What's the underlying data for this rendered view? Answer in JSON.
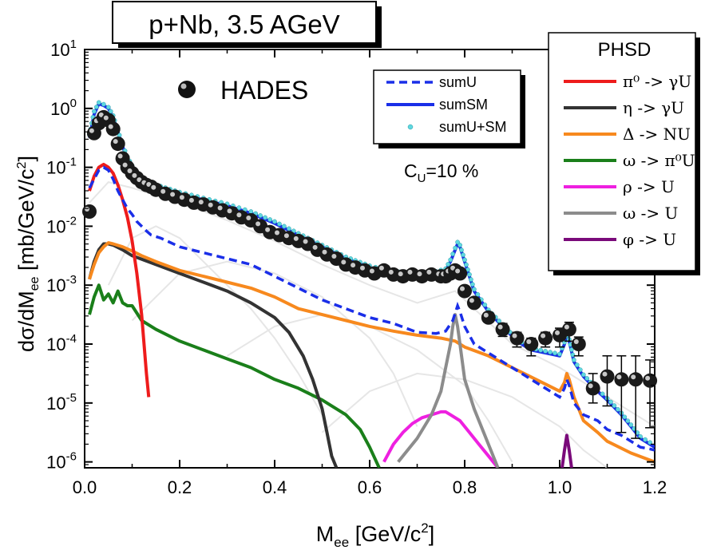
{
  "title": "p+Nb, 3.5 AGeV",
  "experiment_label": "HADES",
  "coupling_label": "C",
  "coupling_sub": "U",
  "coupling_value": "=10 %",
  "phsd_header": "PHSD",
  "chart_data": {
    "type": "line",
    "xlabel": "M",
    "xlabel_sub": "ee",
    "xlabel_unit": " [GeV/c",
    "xlabel_sup": "2",
    "xlabel_end": "]",
    "ylabel": "dσ/dM",
    "ylabel_sub": "ee",
    "ylabel_unit": " [mb/GeV/c",
    "ylabel_sup": "2",
    "ylabel_end": "]",
    "xlim": [
      0.0,
      1.2
    ],
    "ylim_log10": [
      -6.1,
      1
    ],
    "yscale": "log",
    "xticks": [
      "0.0",
      "0.2",
      "0.4",
      "0.6",
      "0.8",
      "1.0",
      "1.2"
    ],
    "yticks": [
      {
        "base": "10",
        "exp": "1",
        "value": 1
      },
      {
        "base": "10",
        "exp": "0",
        "value": 0
      },
      {
        "base": "10",
        "exp": "-1",
        "value": -1
      },
      {
        "base": "10",
        "exp": "-2",
        "value": -2
      },
      {
        "base": "10",
        "exp": "-3",
        "value": -3
      },
      {
        "base": "10",
        "exp": "-4",
        "value": -4
      },
      {
        "base": "10",
        "exp": "-5",
        "value": -5
      },
      {
        "base": "10",
        "exp": "-6",
        "value": -6
      }
    ],
    "legend_left": [
      {
        "label": "sumU",
        "color": "#1a2ee8",
        "style": "dashed"
      },
      {
        "label": "sumSM",
        "color": "#1a2ee8",
        "style": "solid"
      },
      {
        "label": "sumU+SM",
        "color": "#5fd8e0",
        "style": "dots"
      }
    ],
    "legend_right": [
      {
        "label": "π⁰ -> γU",
        "color": "#ee1c1c"
      },
      {
        "label": "η -> γU",
        "color": "#333333"
      },
      {
        "label": "Δ -> NU",
        "color": "#f7891e"
      },
      {
        "label": "ω -> π⁰U",
        "color": "#1a7f1a"
      },
      {
        "label": "ρ -> U",
        "color": "#ee20e0"
      },
      {
        "label": "ω -> U",
        "color": "#8c8c8c"
      },
      {
        "label": "φ -> U",
        "color": "#7a0a7a"
      }
    ],
    "series": [
      {
        "name": "HADES",
        "type": "points",
        "color": "#000000",
        "x": [
          0.01,
          0.02,
          0.03,
          0.04,
          0.05,
          0.06,
          0.07,
          0.08,
          0.09,
          0.1,
          0.11,
          0.12,
          0.13,
          0.14,
          0.15,
          0.17,
          0.19,
          0.21,
          0.23,
          0.25,
          0.27,
          0.29,
          0.31,
          0.33,
          0.35,
          0.37,
          0.39,
          0.41,
          0.43,
          0.45,
          0.47,
          0.49,
          0.51,
          0.53,
          0.55,
          0.57,
          0.59,
          0.61,
          0.63,
          0.65,
          0.67,
          0.69,
          0.71,
          0.73,
          0.75,
          0.76,
          0.77,
          0.78,
          0.79,
          0.8,
          0.82,
          0.85,
          0.88,
          0.91,
          0.94,
          0.97,
          1.0,
          1.02,
          1.04,
          1.07,
          1.1,
          1.13,
          1.16,
          1.19
        ],
        "logy": [
          -1.75,
          -0.42,
          -0.25,
          -0.15,
          -0.2,
          -0.35,
          -0.6,
          -0.85,
          -1.0,
          -1.1,
          -1.18,
          -1.25,
          -1.3,
          -1.33,
          -1.38,
          -1.45,
          -1.5,
          -1.55,
          -1.6,
          -1.63,
          -1.68,
          -1.73,
          -1.78,
          -1.85,
          -1.9,
          -2.0,
          -2.1,
          -2.15,
          -2.2,
          -2.25,
          -2.3,
          -2.4,
          -2.48,
          -2.55,
          -2.65,
          -2.7,
          -2.75,
          -2.8,
          -2.75,
          -2.82,
          -2.85,
          -2.82,
          -2.85,
          -2.82,
          -2.85,
          -2.85,
          -2.8,
          -2.75,
          -2.8,
          -3.1,
          -3.3,
          -3.55,
          -3.75,
          -3.9,
          -4.0,
          -3.9,
          -3.85,
          -3.75,
          -4.0,
          -4.75,
          -4.55,
          -4.6,
          -4.6,
          -4.62
        ],
        "err_up": [
          0,
          0,
          0,
          0,
          0,
          0,
          0,
          0,
          0,
          0,
          0,
          0,
          0,
          0,
          0,
          0,
          0,
          0,
          0,
          0,
          0,
          0,
          0,
          0,
          0,
          0,
          0,
          0,
          0,
          0,
          0,
          0,
          0,
          0,
          0,
          0,
          0,
          0,
          0,
          0,
          0,
          0,
          0,
          0,
          0,
          0,
          0,
          0,
          0,
          0,
          0,
          0.08,
          0.1,
          0.1,
          0.1,
          0.1,
          0.12,
          0.12,
          0.12,
          0.25,
          0.35,
          0.4,
          0.4,
          0.35
        ],
        "err_dn": [
          0,
          0,
          0,
          0,
          0,
          0,
          0,
          0,
          0,
          0,
          0,
          0,
          0,
          0,
          0,
          0,
          0,
          0,
          0,
          0,
          0,
          0,
          0,
          0,
          0,
          0,
          0,
          0,
          0,
          0,
          0,
          0,
          0,
          0,
          0,
          0,
          0,
          0,
          0,
          0,
          0,
          0,
          0,
          0,
          0,
          0,
          0,
          0,
          0,
          0,
          0,
          0.08,
          0.12,
          0.15,
          0.2,
          0.15,
          0.2,
          0.2,
          0.2,
          0.25,
          0.5,
          0.9,
          1.0,
          0.8
        ]
      },
      {
        "name": "sumSM",
        "type": "solid",
        "color": "#1a2ee8",
        "x": [
          0.01,
          0.02,
          0.03,
          0.04,
          0.05,
          0.06,
          0.07,
          0.08,
          0.09,
          0.1,
          0.12,
          0.14,
          0.16,
          0.2,
          0.25,
          0.3,
          0.35,
          0.4,
          0.45,
          0.5,
          0.55,
          0.6,
          0.65,
          0.7,
          0.73,
          0.76,
          0.77,
          0.78,
          0.785,
          0.79,
          0.8,
          0.82,
          0.85,
          0.88,
          0.91,
          0.94,
          0.97,
          1.0,
          1.01,
          1.015,
          1.02,
          1.03,
          1.05,
          1.08,
          1.1,
          1.13,
          1.15,
          1.17,
          1.19,
          1.2
        ],
        "logy": [
          -0.5,
          -0.1,
          0.08,
          0.05,
          0.0,
          -0.15,
          -0.4,
          -0.65,
          -0.85,
          -1.0,
          -1.2,
          -1.3,
          -1.35,
          -1.45,
          -1.55,
          -1.65,
          -1.78,
          -1.95,
          -2.15,
          -2.35,
          -2.55,
          -2.7,
          -2.8,
          -2.82,
          -2.82,
          -2.75,
          -2.6,
          -2.4,
          -2.3,
          -2.35,
          -2.6,
          -3.1,
          -3.45,
          -3.7,
          -3.95,
          -4.1,
          -4.15,
          -4.2,
          -4.0,
          -3.8,
          -3.95,
          -4.3,
          -4.55,
          -4.8,
          -4.95,
          -5.2,
          -5.4,
          -5.6,
          -5.7,
          -5.75
        ]
      },
      {
        "name": "sumU+SM",
        "type": "dots",
        "color": "#5fd8e0",
        "x": [
          0.01,
          0.02,
          0.03,
          0.04,
          0.05,
          0.06,
          0.07,
          0.08,
          0.09,
          0.1,
          0.12,
          0.14,
          0.16,
          0.2,
          0.25,
          0.3,
          0.35,
          0.4,
          0.45,
          0.5,
          0.55,
          0.6,
          0.65,
          0.7,
          0.73,
          0.76,
          0.77,
          0.78,
          0.785,
          0.79,
          0.8,
          0.82,
          0.85,
          0.88,
          0.91,
          0.94,
          0.97,
          1.0,
          1.01,
          1.015,
          1.02,
          1.03,
          1.05,
          1.08,
          1.1,
          1.13,
          1.15,
          1.17,
          1.19,
          1.2
        ],
        "logy": [
          -0.45,
          -0.05,
          0.1,
          0.07,
          0.02,
          -0.12,
          -0.37,
          -0.62,
          -0.82,
          -0.97,
          -1.17,
          -1.27,
          -1.32,
          -1.42,
          -1.52,
          -1.62,
          -1.75,
          -1.92,
          -2.12,
          -2.32,
          -2.52,
          -2.67,
          -2.77,
          -2.79,
          -2.79,
          -2.72,
          -2.57,
          -2.37,
          -2.27,
          -2.32,
          -2.57,
          -3.07,
          -3.42,
          -3.67,
          -3.92,
          -4.07,
          -4.12,
          -4.17,
          -3.97,
          -3.77,
          -3.92,
          -4.27,
          -4.52,
          -4.77,
          -4.92,
          -5.17,
          -5.37,
          -5.57,
          -5.67,
          -5.72
        ]
      },
      {
        "name": "sumU",
        "type": "dashed",
        "color": "#1a2ee8",
        "x": [
          0.01,
          0.02,
          0.03,
          0.04,
          0.05,
          0.06,
          0.07,
          0.08,
          0.09,
          0.1,
          0.11,
          0.12,
          0.13,
          0.14,
          0.16,
          0.2,
          0.25,
          0.3,
          0.35,
          0.4,
          0.45,
          0.5,
          0.55,
          0.6,
          0.65,
          0.7,
          0.74,
          0.76,
          0.775,
          0.785,
          0.79,
          0.8,
          0.82,
          0.85,
          0.88,
          0.91,
          0.94,
          0.97,
          1.0,
          1.01,
          1.015,
          1.02,
          1.03,
          1.05,
          1.08,
          1.1,
          1.13,
          1.15,
          1.17,
          1.19,
          1.2
        ],
        "logy": [
          -1.35,
          -1.2,
          -1.05,
          -1.0,
          -1.05,
          -1.2,
          -1.4,
          -1.55,
          -1.7,
          -1.8,
          -1.92,
          -2.0,
          -2.08,
          -2.15,
          -2.2,
          -2.35,
          -2.45,
          -2.55,
          -2.65,
          -2.85,
          -3.05,
          -3.25,
          -3.4,
          -3.55,
          -3.65,
          -3.8,
          -3.82,
          -3.78,
          -3.6,
          -3.35,
          -3.45,
          -3.7,
          -4.0,
          -4.15,
          -4.3,
          -4.45,
          -4.6,
          -4.75,
          -4.9,
          -4.75,
          -4.6,
          -4.7,
          -5.0,
          -5.2,
          -5.3,
          -5.45,
          -5.55,
          -5.65,
          -5.75,
          -5.78,
          -5.8
        ]
      },
      {
        "name": "π0 -> γU",
        "type": "solid",
        "color": "#ee1c1c",
        "x": [
          0.01,
          0.02,
          0.03,
          0.04,
          0.05,
          0.06,
          0.07,
          0.08,
          0.09,
          0.1,
          0.11,
          0.12,
          0.125,
          0.13,
          0.135
        ],
        "logy": [
          -1.4,
          -1.15,
          -1.0,
          -0.95,
          -1.0,
          -1.1,
          -1.3,
          -1.55,
          -1.85,
          -2.25,
          -2.8,
          -3.5,
          -4.0,
          -4.5,
          -4.9
        ]
      },
      {
        "name": "η -> γU",
        "type": "solid",
        "color": "#333333",
        "x": [
          0.01,
          0.02,
          0.03,
          0.04,
          0.05,
          0.06,
          0.08,
          0.1,
          0.15,
          0.2,
          0.25,
          0.3,
          0.35,
          0.4,
          0.43,
          0.46,
          0.48,
          0.5,
          0.51,
          0.52,
          0.53
        ],
        "logy": [
          -2.9,
          -2.6,
          -2.4,
          -2.3,
          -2.3,
          -2.32,
          -2.4,
          -2.5,
          -2.65,
          -2.8,
          -2.95,
          -3.1,
          -3.3,
          -3.55,
          -3.8,
          -4.2,
          -4.6,
          -5.1,
          -5.5,
          -5.9,
          -6.1
        ]
      },
      {
        "name": "Δ -> NU",
        "type": "solid",
        "color": "#f7891e",
        "x": [
          0.01,
          0.02,
          0.03,
          0.04,
          0.05,
          0.06,
          0.08,
          0.1,
          0.12,
          0.15,
          0.2,
          0.25,
          0.3,
          0.35,
          0.4,
          0.45,
          0.5,
          0.55,
          0.6,
          0.65,
          0.7,
          0.75,
          0.78,
          0.8,
          0.85,
          0.9,
          0.95,
          1.0,
          1.01,
          1.015,
          1.02,
          1.03,
          1.05,
          1.08,
          1.1,
          1.15,
          1.2
        ],
        "logy": [
          -2.9,
          -2.65,
          -2.45,
          -2.35,
          -2.28,
          -2.3,
          -2.35,
          -2.42,
          -2.5,
          -2.6,
          -2.75,
          -2.85,
          -2.95,
          -3.05,
          -3.2,
          -3.4,
          -3.5,
          -3.6,
          -3.7,
          -3.78,
          -3.85,
          -3.9,
          -3.95,
          -4.05,
          -4.2,
          -4.4,
          -4.6,
          -4.8,
          -4.65,
          -4.5,
          -4.6,
          -4.9,
          -5.3,
          -5.5,
          -5.65,
          -5.85,
          -6.0
        ]
      },
      {
        "name": "ω -> π0U",
        "type": "solid",
        "color": "#1a7f1a",
        "x": [
          0.01,
          0.02,
          0.03,
          0.04,
          0.05,
          0.06,
          0.07,
          0.08,
          0.09,
          0.1,
          0.12,
          0.15,
          0.2,
          0.25,
          0.3,
          0.35,
          0.4,
          0.45,
          0.5,
          0.55,
          0.58,
          0.6,
          0.62
        ],
        "logy": [
          -3.5,
          -3.2,
          -3.0,
          -3.25,
          -3.15,
          -3.3,
          -3.1,
          -3.3,
          -3.35,
          -3.35,
          -3.6,
          -3.75,
          -3.95,
          -4.1,
          -4.25,
          -4.4,
          -4.6,
          -4.75,
          -4.95,
          -5.2,
          -5.45,
          -5.75,
          -6.1
        ]
      },
      {
        "name": "ρ -> U",
        "type": "solid",
        "color": "#ee20e0",
        "x": [
          0.63,
          0.65,
          0.67,
          0.69,
          0.71,
          0.73,
          0.75,
          0.76,
          0.77,
          0.79,
          0.81,
          0.83,
          0.85,
          0.87
        ],
        "logy": [
          -6.0,
          -5.7,
          -5.5,
          -5.35,
          -5.25,
          -5.2,
          -5.15,
          -5.15,
          -5.2,
          -5.3,
          -5.5,
          -5.7,
          -5.9,
          -6.1
        ]
      },
      {
        "name": "ω -> U",
        "type": "solid",
        "color": "#8c8c8c",
        "x": [
          0.66,
          0.7,
          0.73,
          0.75,
          0.76,
          0.77,
          0.775,
          0.78,
          0.785,
          0.79,
          0.8,
          0.82,
          0.84,
          0.86,
          0.87
        ],
        "logy": [
          -6.0,
          -5.6,
          -5.2,
          -4.8,
          -4.4,
          -4.0,
          -3.7,
          -3.5,
          -3.7,
          -4.0,
          -4.6,
          -5.1,
          -5.5,
          -5.9,
          -6.1
        ]
      },
      {
        "name": "φ -> U",
        "type": "solid",
        "color": "#7a0a7a",
        "x": [
          1.005,
          1.01,
          1.015,
          1.02,
          1.025
        ],
        "logy": [
          -6.1,
          -5.8,
          -5.55,
          -5.8,
          -6.1
        ]
      }
    ],
    "background_curves": [
      {
        "name": "",
        "color": "#e6e6e6",
        "x": [
          0.01,
          0.05,
          0.1,
          0.2,
          0.3,
          0.4,
          0.5,
          0.6,
          0.7,
          0.78,
          0.9,
          1.0,
          1.1,
          1.2
        ],
        "logy": [
          -1.6,
          -1.25,
          -1.35,
          -1.6,
          -1.9,
          -2.25,
          -2.65,
          -3.0,
          -3.3,
          -3.1,
          -4.0,
          -4.4,
          -4.9,
          -5.4
        ]
      },
      {
        "name": "",
        "color": "#e6e6e6",
        "x": [
          0.05,
          0.1,
          0.15,
          0.2,
          0.25,
          0.3,
          0.35,
          0.4,
          0.45,
          0.5
        ],
        "logy": [
          -3.0,
          -2.2,
          -2.0,
          -2.2,
          -2.6,
          -3.0,
          -3.4,
          -3.9,
          -4.5,
          -5.2
        ]
      },
      {
        "name": "",
        "color": "#e6e6e6",
        "x": [
          0.1,
          0.2,
          0.3,
          0.4,
          0.5,
          0.6,
          0.65,
          0.7
        ],
        "logy": [
          -3.6,
          -2.8,
          -2.6,
          -2.8,
          -3.2,
          -3.9,
          -4.5,
          -5.4
        ]
      },
      {
        "name": "",
        "color": "#e6e6e6",
        "x": [
          0.3,
          0.4,
          0.5,
          0.6,
          0.7,
          0.8,
          0.85,
          0.9
        ],
        "logy": [
          -4.2,
          -3.7,
          -3.5,
          -3.7,
          -4.1,
          -4.7,
          -5.3,
          -6.0
        ]
      },
      {
        "name": "",
        "color": "#e6e6e6",
        "x": [
          0.5,
          0.6,
          0.7,
          0.8,
          0.9,
          1.0,
          1.05,
          1.1
        ],
        "logy": [
          -5.5,
          -4.8,
          -4.5,
          -4.6,
          -4.9,
          -5.4,
          -5.8,
          -6.1
        ]
      }
    ]
  }
}
